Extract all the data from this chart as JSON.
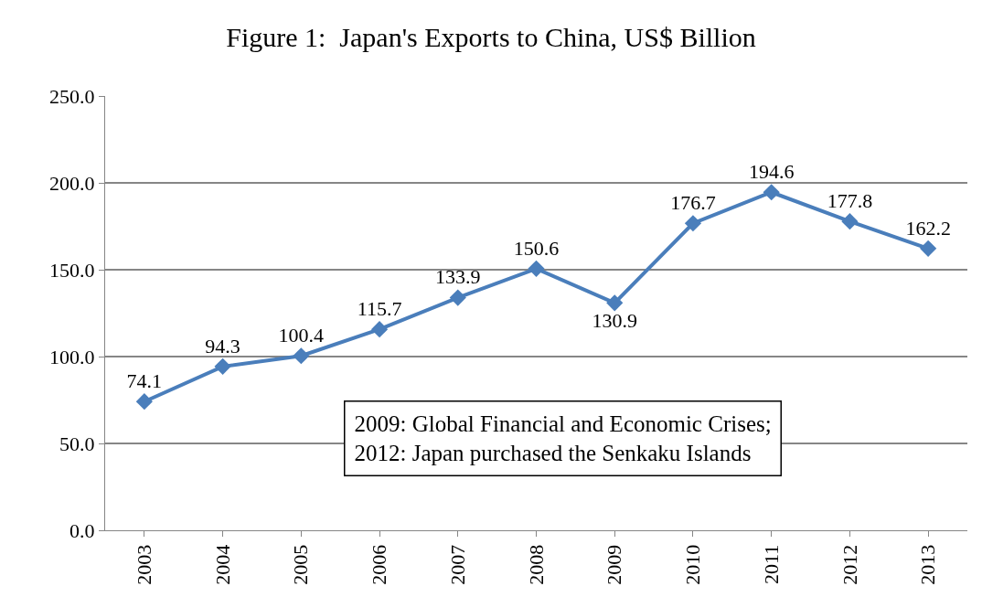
{
  "chart_data": {
    "type": "line",
    "title": "Figure 1:  Japan's Exports to China, US$ Billion",
    "categories": [
      "2003",
      "2004",
      "2005",
      "2006",
      "2007",
      "2008",
      "2009",
      "2010",
      "2011",
      "2012",
      "2013"
    ],
    "series": [
      {
        "color": "#4a7ebb",
        "values": [
          74.1,
          94.3,
          100.4,
          115.7,
          133.9,
          150.6,
          130.9,
          176.7,
          194.6,
          177.8,
          162.2
        ]
      }
    ],
    "ylim": [
      0,
      250
    ],
    "yticks": [
      {
        "value": 0,
        "label": "0.0"
      },
      {
        "value": 50,
        "label": "50.0"
      },
      {
        "value": 100,
        "label": "100.0"
      },
      {
        "value": 150,
        "label": "150.0"
      },
      {
        "value": 200,
        "label": "200.0"
      },
      {
        "value": 250,
        "label": "250.0"
      }
    ],
    "grid": "y",
    "legend": false,
    "marker": "diamond",
    "line_style": "solid",
    "data_labels": true,
    "annotations": [
      "2009: Global Financial and Economic Crises;\n2012: Japan purchased the Senkaku Islands"
    ]
  }
}
